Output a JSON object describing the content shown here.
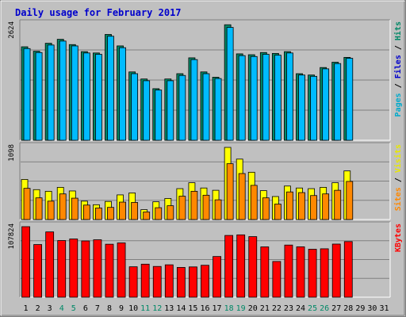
{
  "chart_data": {
    "type": "bar",
    "title": "Daily usage for February 2017",
    "days": [
      "1",
      "2",
      "3",
      "4",
      "5",
      "6",
      "7",
      "8",
      "9",
      "10",
      "11",
      "12",
      "13",
      "14",
      "15",
      "16",
      "17",
      "18",
      "19",
      "20",
      "21",
      "22",
      "23",
      "24",
      "25",
      "26",
      "27",
      "28",
      "29",
      "30",
      "31"
    ],
    "weekend_days": [
      "4",
      "5",
      "11",
      "12",
      "18",
      "19",
      "25",
      "26"
    ],
    "panels": [
      {
        "id": "hits",
        "max_label": "2624",
        "max": 2624,
        "side_label": [
          {
            "text": "Pages",
            "color": "#00aacc"
          },
          {
            "text": " / ",
            "color": "#000000"
          },
          {
            "text": "Files",
            "color": "#0000cc"
          },
          {
            "text": " / ",
            "color": "#000000"
          },
          {
            "text": "Hits",
            "color": "#008866"
          }
        ],
        "series": [
          {
            "name": "Hits",
            "color": "#008866",
            "values": [
              2120,
              2020,
              2200,
              2290,
              2170,
              2010,
              1980,
              2400,
              2140,
              1550,
              1390,
              1170,
              1390,
              1510,
              1870,
              1550,
              1430,
              2620,
              1960,
              1940,
              1990,
              1970,
              2010,
              1510,
              1480,
              1650,
              1770,
              1880,
              0,
              0,
              0
            ]
          },
          {
            "name": "Files",
            "color": "#00bbff",
            "values": [
              2080,
              1990,
              2160,
              2250,
              2140,
              1980,
              1950,
              2360,
              2100,
              1510,
              1350,
              1140,
              1350,
              1470,
              1830,
              1510,
              1400,
              2560,
              1920,
              1900,
              1950,
              1930,
              1980,
              1480,
              1450,
              1620,
              1740,
              1860,
              0,
              0,
              0
            ]
          }
        ]
      },
      {
        "id": "visits",
        "max_label": "1098",
        "max": 1098,
        "side_label": [
          {
            "text": "Sites",
            "color": "#ff8800"
          },
          {
            "text": " / ",
            "color": "#000000"
          },
          {
            "text": "Visits",
            "color": "#e8e800"
          }
        ],
        "series": [
          {
            "name": "Visits",
            "color": "#ffff00",
            "values": [
              610,
              455,
              430,
              490,
              435,
              280,
              225,
              275,
              375,
              405,
              150,
              270,
              320,
              470,
              560,
              480,
              445,
              1098,
              920,
              720,
              440,
              350,
              510,
              480,
              470,
              490,
              560,
              740,
              0,
              0,
              0
            ]
          },
          {
            "name": "Sites",
            "color": "#ff8800",
            "values": [
              475,
              330,
              280,
              390,
              325,
              220,
              175,
              185,
              265,
              260,
              115,
              180,
              210,
              355,
              430,
              370,
              300,
              850,
              700,
              520,
              330,
              235,
              420,
              410,
              365,
              390,
              445,
              580,
              0,
              0,
              0
            ]
          }
        ]
      },
      {
        "id": "kbytes",
        "max_label": "107824",
        "max": 107824,
        "side_label": [
          {
            "text": "KBytes",
            "color": "#ff0000"
          }
        ],
        "series": [
          {
            "name": "KBytes",
            "color": "#ff0000",
            "values": [
              107824,
              80500,
              99800,
              86600,
              89000,
              86000,
              87800,
              81000,
              83000,
              46500,
              50500,
              47000,
              49500,
              45500,
              46300,
              48800,
              62200,
              94400,
              95300,
              92600,
              76900,
              54600,
              79700,
              77000,
              73300,
              74000,
              81200,
              85000,
              0,
              0,
              0
            ]
          }
        ]
      }
    ]
  }
}
